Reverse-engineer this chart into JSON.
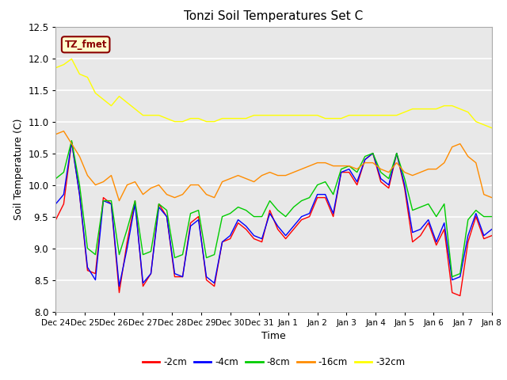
{
  "title": "Tonzi Soil Temperatures Set C",
  "xlabel": "Time",
  "ylabel": "Soil Temperature (C)",
  "ylim": [
    8.0,
    12.5
  ],
  "annotation": "TZ_fmet",
  "annotation_color": "#8B0000",
  "annotation_bg": "#FFFFCC",
  "annotation_border": "#8B0000",
  "fig_bg": "#FFFFFF",
  "plot_bg": "#E8E8E8",
  "xtick_labels": [
    "Dec 24",
    "Dec 25",
    "Dec 26",
    "Dec 27",
    "Dec 28",
    "Dec 29",
    "Dec 30",
    "Dec 31",
    "Jan 1",
    "Jan 2",
    "Jan 3",
    "Jan 4",
    "Jan 5",
    "Jan 6",
    "Jan 7",
    "Jan 8"
  ],
  "legend_labels": [
    "-2cm",
    "-4cm",
    "-8cm",
    "-16cm",
    "-32cm"
  ],
  "line_colors": [
    "#FF0000",
    "#0000FF",
    "#00CC00",
    "#FF8C00",
    "#FFFF00"
  ],
  "series_neg2cm": [
    9.45,
    9.7,
    10.68,
    9.85,
    8.65,
    8.6,
    9.8,
    9.7,
    8.3,
    9.1,
    9.75,
    8.4,
    8.6,
    9.7,
    9.5,
    8.55,
    8.55,
    9.4,
    9.5,
    8.5,
    8.4,
    9.1,
    9.15,
    9.4,
    9.3,
    9.15,
    9.1,
    9.6,
    9.3,
    9.15,
    9.3,
    9.45,
    9.5,
    9.8,
    9.8,
    9.5,
    10.2,
    10.2,
    10.0,
    10.4,
    10.5,
    10.05,
    9.95,
    10.5,
    9.95,
    9.1,
    9.2,
    9.4,
    9.05,
    9.3,
    8.3,
    8.25,
    9.1,
    9.5,
    9.15,
    9.2
  ],
  "series_neg4cm": [
    9.7,
    9.85,
    10.68,
    9.85,
    8.7,
    8.5,
    9.75,
    9.7,
    8.4,
    9.0,
    9.7,
    8.45,
    8.6,
    9.65,
    9.5,
    8.6,
    8.55,
    9.35,
    9.45,
    8.55,
    8.45,
    9.1,
    9.2,
    9.45,
    9.35,
    9.2,
    9.15,
    9.55,
    9.35,
    9.2,
    9.35,
    9.5,
    9.55,
    9.85,
    9.85,
    9.55,
    10.2,
    10.25,
    10.05,
    10.4,
    10.5,
    10.1,
    10.0,
    10.5,
    10.0,
    9.25,
    9.3,
    9.45,
    9.1,
    9.4,
    8.5,
    8.55,
    9.2,
    9.55,
    9.2,
    9.3
  ],
  "series_neg8cm": [
    10.1,
    10.2,
    10.7,
    10.0,
    9.0,
    8.9,
    9.75,
    9.75,
    8.9,
    9.3,
    9.75,
    8.9,
    8.95,
    9.7,
    9.6,
    8.85,
    8.9,
    9.55,
    9.6,
    8.85,
    8.9,
    9.5,
    9.55,
    9.65,
    9.6,
    9.5,
    9.5,
    9.75,
    9.6,
    9.5,
    9.65,
    9.75,
    9.8,
    10.0,
    10.05,
    9.85,
    10.25,
    10.3,
    10.2,
    10.45,
    10.5,
    10.2,
    10.1,
    10.5,
    10.1,
    9.6,
    9.65,
    9.7,
    9.5,
    9.7,
    8.55,
    8.6,
    9.45,
    9.6,
    9.5,
    9.5
  ],
  "series_neg16cm": [
    10.8,
    10.85,
    10.65,
    10.45,
    10.15,
    10.0,
    10.05,
    10.15,
    9.75,
    10.0,
    10.05,
    9.85,
    9.95,
    10.0,
    9.85,
    9.8,
    9.85,
    10.0,
    10.0,
    9.85,
    9.8,
    10.05,
    10.1,
    10.15,
    10.1,
    10.05,
    10.15,
    10.2,
    10.15,
    10.15,
    10.2,
    10.25,
    10.3,
    10.35,
    10.35,
    10.3,
    10.3,
    10.3,
    10.25,
    10.35,
    10.35,
    10.25,
    10.2,
    10.35,
    10.2,
    10.15,
    10.2,
    10.25,
    10.25,
    10.35,
    10.6,
    10.65,
    10.45,
    10.35,
    9.85,
    9.8
  ],
  "series_neg32cm": [
    11.85,
    11.9,
    11.99,
    11.75,
    11.7,
    11.45,
    11.35,
    11.25,
    11.4,
    11.3,
    11.2,
    11.1,
    11.1,
    11.1,
    11.05,
    11.0,
    11.0,
    11.05,
    11.05,
    11.0,
    11.0,
    11.05,
    11.05,
    11.05,
    11.05,
    11.1,
    11.1,
    11.1,
    11.1,
    11.1,
    11.1,
    11.1,
    11.1,
    11.1,
    11.05,
    11.05,
    11.05,
    11.1,
    11.1,
    11.1,
    11.1,
    11.1,
    11.1,
    11.1,
    11.15,
    11.2,
    11.2,
    11.2,
    11.2,
    11.25,
    11.25,
    11.2,
    11.15,
    11.0,
    10.95,
    10.9
  ]
}
